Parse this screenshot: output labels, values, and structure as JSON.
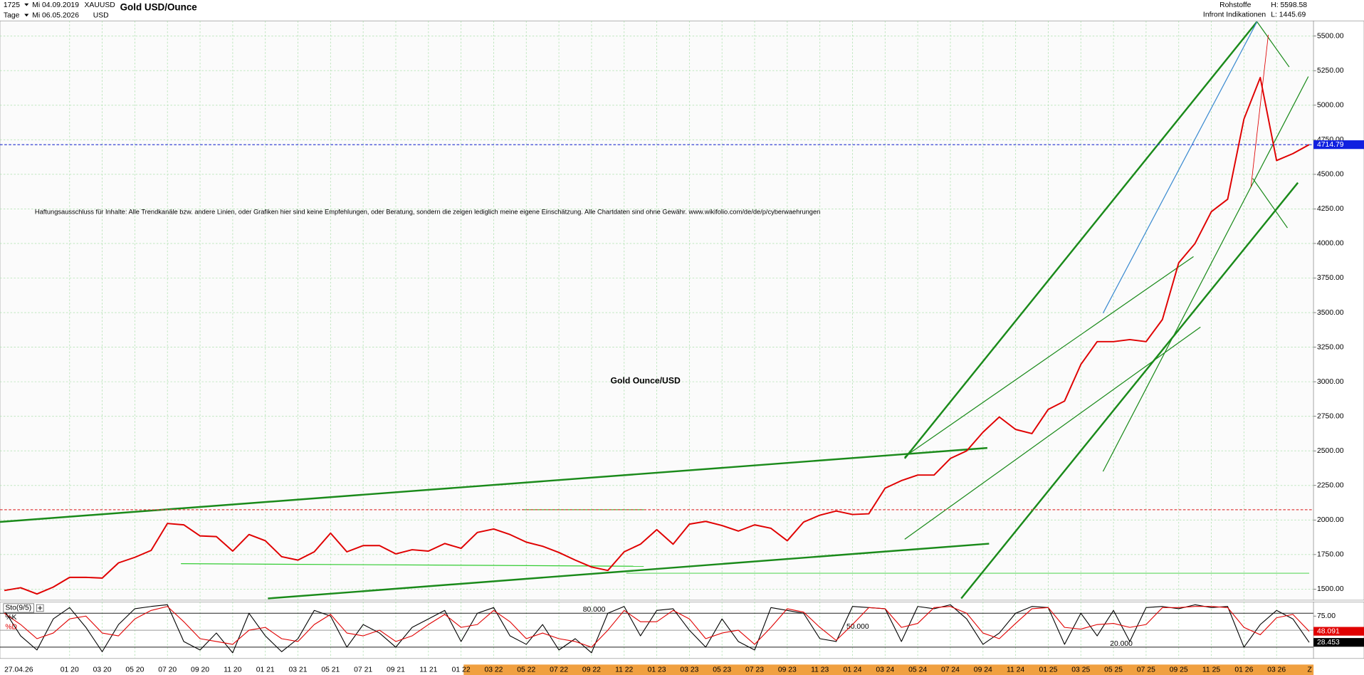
{
  "header": {
    "interval": "1725",
    "period_unit": "Tage",
    "start_date": "Mi 04.09.2019",
    "end_date": "Mi 06.05.2026",
    "symbol": "XAUUSD",
    "currency": "USD",
    "title": "Gold USD/Ounce",
    "category": "Rohstoffe",
    "source": "Infront Indikationen",
    "high": "H: 5598.58",
    "low": "L: 1445.69",
    "cursor_date": "27.04.26",
    "axis_end_label": "Z"
  },
  "chart_data": [
    {
      "type": "line",
      "annotations": [
        "Haftungsausschluss für Inhalte: Alle Trendkanäle bzw. andere Linien, oder Grafiken hier sind keine Empfehlungen, oder Beratung, sondern die zeigen lediglich meine eigene Einschätzung. Alle Chartdaten sind ohne Gewähr.  www.wikifolio.com/de/de/p/cyberwaehrungen",
        "Gold Ounce/USD"
      ],
      "categories": [
        null,
        null,
        null,
        null,
        "01 20",
        null,
        "03 20",
        null,
        "05 20",
        null,
        "07 20",
        null,
        "09 20",
        null,
        "11 20",
        null,
        "01 21",
        null,
        "03 21",
        null,
        "05 21",
        null,
        "07 21",
        null,
        "09 21",
        null,
        "11 21",
        null,
        "01 22",
        null,
        "03 22",
        null,
        "05 22",
        null,
        "07 22",
        null,
        "09 22",
        null,
        "11 22",
        null,
        "01 23",
        null,
        "03 23",
        null,
        "05 23",
        null,
        "07 23",
        null,
        "09 23",
        null,
        "11 23",
        null,
        "01 24",
        null,
        "03 24",
        null,
        "05 24",
        null,
        "07 24",
        null,
        "09 24",
        null,
        "11 24",
        null,
        "01 25",
        null,
        "03 25",
        null,
        "05 25",
        null,
        "07 25",
        null,
        "09 25",
        null,
        "11 25",
        null,
        "01 26",
        null,
        "03 26",
        null,
        null
      ],
      "values": [
        1490,
        1510,
        1465,
        1515,
        1585,
        1585,
        1580,
        1690,
        1730,
        1780,
        1975,
        1965,
        1885,
        1880,
        1775,
        1895,
        1850,
        1735,
        1710,
        1770,
        1905,
        1770,
        1815,
        1815,
        1755,
        1785,
        1775,
        1830,
        1795,
        1910,
        1935,
        1895,
        1840,
        1810,
        1765,
        1710,
        1660,
        1635,
        1770,
        1825,
        1930,
        1825,
        1970,
        1990,
        1960,
        1920,
        1965,
        1940,
        1850,
        1985,
        2035,
        2065,
        2040,
        2045,
        2230,
        2285,
        2325,
        2325,
        2445,
        2500,
        2635,
        2745,
        2655,
        2625,
        2800,
        2860,
        3125,
        3290,
        3290,
        3305,
        3290,
        3450,
        3860,
        4000,
        4230,
        4320,
        4900,
        5200,
        4600,
        4650,
        4714.79
      ],
      "color": "#e00000",
      "last_price": 4714.79,
      "ylim": [
        1420,
        5610
      ],
      "yticks": [
        {
          "value": 1500,
          "label": "1500.00"
        },
        {
          "value": 1750,
          "label": "1750.00"
        },
        {
          "value": 2000,
          "label": "2000.00"
        },
        {
          "value": 2250,
          "label": "2250.00"
        },
        {
          "value": 2500,
          "label": "2500.00"
        },
        {
          "value": 2750,
          "label": "2750.00"
        },
        {
          "value": 3000,
          "label": "3000.00"
        },
        {
          "value": 3250,
          "label": "3250.00"
        },
        {
          "value": 3500,
          "label": "3500.00"
        },
        {
          "value": 3750,
          "label": "3750.00"
        },
        {
          "value": 4000,
          "label": "4000.00"
        },
        {
          "value": 4250,
          "label": "4250.00"
        },
        {
          "value": 4500,
          "label": "4500.00"
        },
        {
          "value": 4750,
          "label": "4750.00"
        },
        {
          "value": 5000,
          "label": "5000.00"
        },
        {
          "value": 5250,
          "label": "5250.00"
        },
        {
          "value": 5500,
          "label": "5500.00"
        }
      ],
      "grid": true
    },
    {
      "type": "line",
      "title": "Sto(9/5)",
      "series": [
        {
          "name": "%K",
          "color": "#000000",
          "values": [
            85,
            40,
            15,
            70,
            90,
            55,
            12,
            60,
            88,
            92,
            95,
            30,
            15,
            45,
            10,
            80,
            40,
            12,
            35,
            85,
            75,
            20,
            60,
            45,
            20,
            55,
            70,
            85,
            30,
            80,
            90,
            40,
            25,
            60,
            15,
            35,
            10,
            80,
            92,
            40,
            85,
            88,
            50,
            20,
            70,
            30,
            15,
            90,
            85,
            80,
            35,
            30,
            92,
            90,
            88,
            30,
            92,
            88,
            95,
            70,
            25,
            45,
            80,
            92,
            90,
            25,
            80,
            40,
            85,
            30,
            90,
            92,
            88,
            95,
            90,
            92,
            20,
            60,
            85,
            70,
            28.453
          ]
        },
        {
          "name": "%D",
          "color": "#e00000",
          "values": [
            80,
            60,
            35,
            45,
            70,
            75,
            45,
            40,
            70,
            85,
            92,
            65,
            35,
            30,
            25,
            50,
            55,
            35,
            30,
            60,
            78,
            45,
            40,
            50,
            30,
            40,
            60,
            78,
            55,
            60,
            85,
            65,
            35,
            45,
            35,
            30,
            20,
            50,
            85,
            65,
            65,
            85,
            70,
            35,
            45,
            50,
            25,
            55,
            88,
            82,
            55,
            32,
            60,
            90,
            88,
            55,
            62,
            90,
            92,
            80,
            45,
            35,
            62,
            88,
            90,
            55,
            52,
            60,
            62,
            55,
            60,
            90,
            90,
            92,
            92,
            90,
            55,
            42,
            72,
            78,
            48.091
          ]
        }
      ],
      "ylim": [
        0,
        100
      ],
      "yticks": [
        {
          "value": 75,
          "label": "75.00"
        }
      ],
      "levels": [
        {
          "value": 80,
          "label": "80.000"
        },
        {
          "value": 50,
          "label": "50.000"
        },
        {
          "value": 20,
          "label": "20.000"
        }
      ]
    }
  ]
}
